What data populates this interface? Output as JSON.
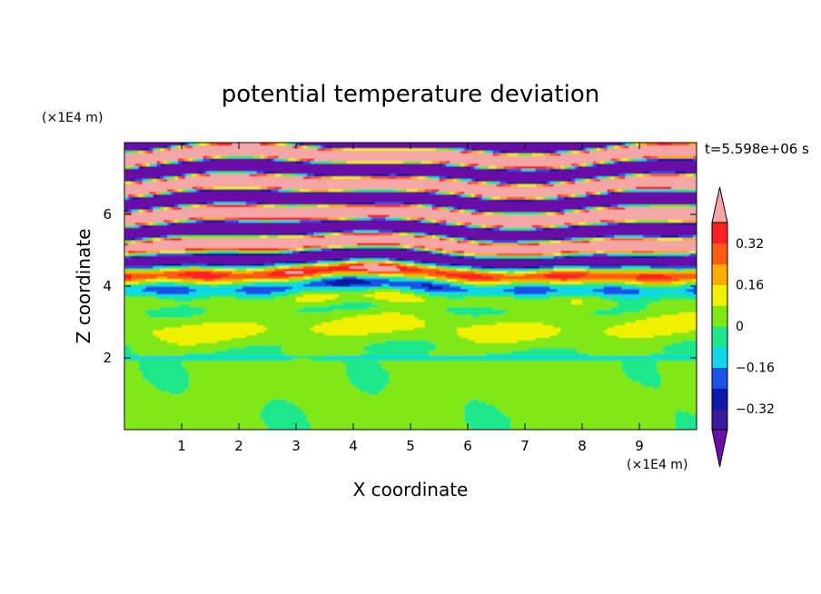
{
  "chart_data": {
    "type": "heatmap",
    "title": "potential temperature deviation",
    "xlabel": "X coordinate",
    "ylabel": "Z coordinate",
    "x_unit": "(×1E4 m)",
    "y_unit": "(×1E4 m)",
    "time_label": "t=5.598e+06 s",
    "xlim": [
      0,
      10
    ],
    "ylim": [
      0,
      8
    ],
    "x_ticks": [
      1,
      2,
      3,
      4,
      5,
      6,
      7,
      8,
      9
    ],
    "y_ticks": [
      2,
      4,
      6
    ],
    "x_tick_labels": [
      "1",
      "2",
      "3",
      "4",
      "5",
      "6",
      "7",
      "8",
      "9"
    ],
    "y_tick_labels": [
      "2",
      "4",
      "6"
    ],
    "colorbar": {
      "levels": [
        -0.4,
        -0.32,
        -0.24,
        -0.16,
        -0.08,
        0,
        0.08,
        0.16,
        0.24,
        0.32,
        0.4
      ],
      "tick_values": [
        0.32,
        0.16,
        0,
        -0.16,
        -0.32
      ],
      "tick_labels": [
        "0.32",
        "0.16",
        "0",
        "−0.16",
        "−0.32"
      ],
      "colors": [
        "#6a0fa8",
        "#3a1a9c",
        "#0f18a8",
        "#1b52e6",
        "#10d8e8",
        "#1ee88a",
        "#7fe814",
        "#f0f000",
        "#ffaa00",
        "#ff5a14",
        "#ff2020",
        "#f4a6a6"
      ],
      "extend": "both"
    },
    "layers": [
      {
        "z_range": [
          0,
          2.0
        ],
        "description_value": 0.02
      },
      {
        "z_range": [
          2.0,
          2.2
        ],
        "description_value": -0.1
      },
      {
        "z_range": [
          2.2,
          3.6
        ],
        "description_value": 0.05
      },
      {
        "z_range": [
          3.6,
          4.8
        ],
        "description_value": "mixed -0.4 to 0.4"
      },
      {
        "z_range": [
          4.8,
          5.6
        ],
        "description_value": "mixed -0.4 to 0.4"
      },
      {
        "z_range": [
          5.6,
          8.0
        ],
        "description_value": "alternating -0.4 / 0.4"
      }
    ]
  }
}
